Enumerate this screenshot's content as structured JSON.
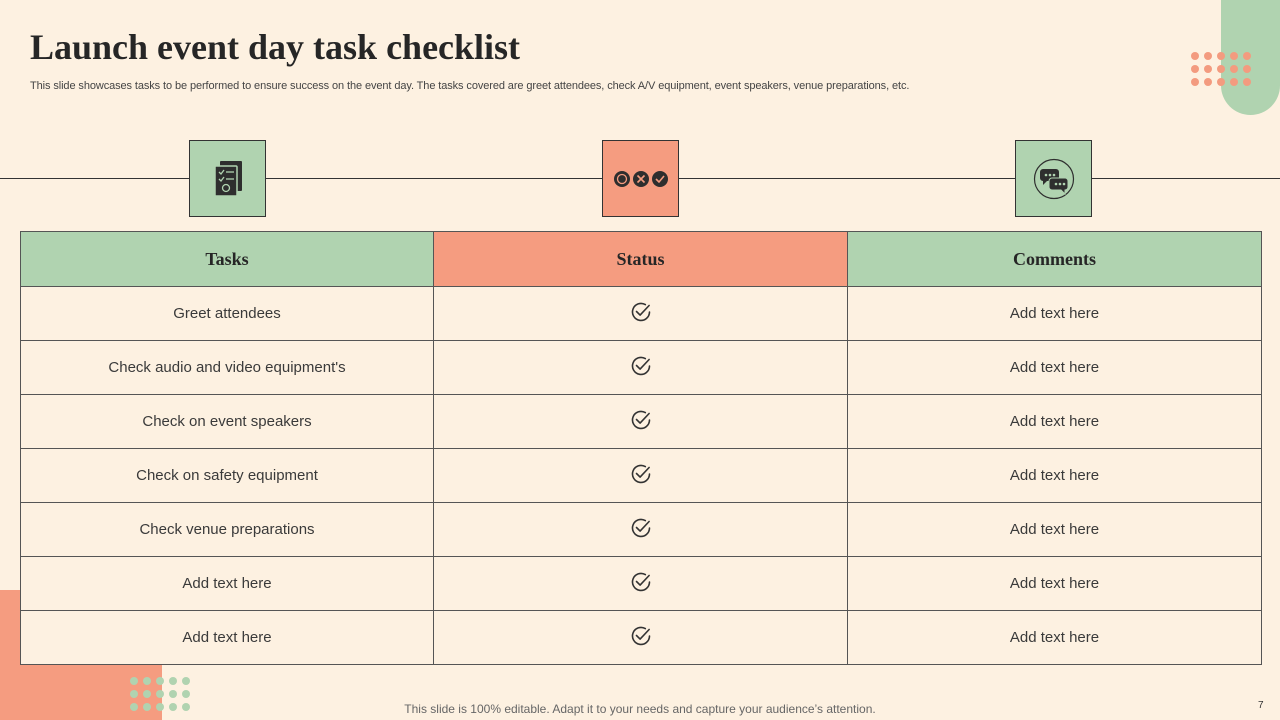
{
  "slide": {
    "title": "Launch event day task checklist",
    "subtitle": "This slide showcases tasks to be performed to ensure success on the event day.  The tasks covered are greet attendees, check A/V  equipment, event speakers, venue preparations, etc.",
    "footer": "This slide is 100% editable. Adapt it to your needs and capture your audience’s attention.",
    "page_number": "7"
  },
  "icons": [
    "checklist-document-icon",
    "status-options-icon",
    "chat-bubbles-icon"
  ],
  "table": {
    "headers": [
      "Tasks",
      "Status",
      "Comments"
    ],
    "rows": [
      {
        "task": "Greet attendees",
        "status": "check-icon",
        "comment": "Add text here"
      },
      {
        "task": "Check audio and video equipment's",
        "status": "check-icon",
        "comment": "Add text here"
      },
      {
        "task": "Check on event speakers",
        "status": "check-icon",
        "comment": "Add text here"
      },
      {
        "task": "Check on safety equipment",
        "status": "check-icon",
        "comment": "Add text here"
      },
      {
        "task": "Check venue preparations",
        "status": "check-icon",
        "comment": "Add text here"
      },
      {
        "task": "Add text here",
        "status": "check-icon",
        "comment": "Add text here"
      },
      {
        "task": "Add text here",
        "status": "check-icon",
        "comment": "Add text here"
      }
    ]
  },
  "colors": {
    "background": "#fdf1e1",
    "green_accent": "#b0d3b0",
    "salmon_accent": "#f59c80",
    "text_dark": "#262626"
  }
}
